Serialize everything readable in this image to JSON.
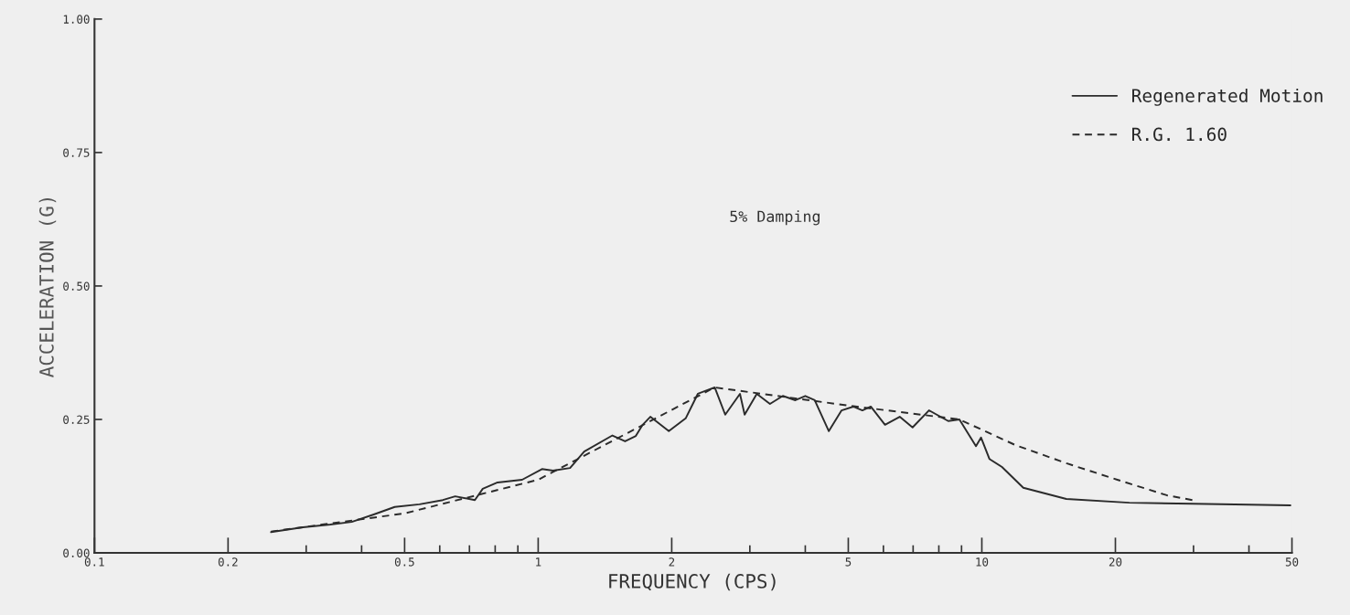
{
  "chart_data": {
    "type": "line",
    "xlabel": "FREQUENCY (CPS)",
    "ylabel": "ACCELERATION (G)",
    "annotations": [
      "5% Damping"
    ],
    "log": "x",
    "grid": false,
    "legend": "top right",
    "marker": "none",
    "xlim": [
      0.1,
      50
    ],
    "ylim": [
      0,
      1.0
    ],
    "xticks": [
      0.1,
      0.2,
      {
        "value": 0.3,
        "label": null
      },
      {
        "value": 0.4,
        "label": null
      },
      0.5,
      {
        "value": 0.6,
        "label": null
      },
      {
        "value": 0.7,
        "label": null
      },
      {
        "value": 0.8,
        "label": null
      },
      {
        "value": 0.9,
        "label": null
      },
      1,
      2,
      {
        "value": 3,
        "label": null
      },
      {
        "value": 4,
        "label": null
      },
      5,
      {
        "value": 6,
        "label": null
      },
      {
        "value": 7,
        "label": null
      },
      {
        "value": 8,
        "label": null
      },
      {
        "value": 9,
        "label": null
      },
      10,
      20,
      {
        "value": 30,
        "label": null
      },
      {
        "value": 40,
        "label": null
      },
      50
    ],
    "yticks": [
      {
        "value": 0,
        "label": "0.00"
      },
      {
        "value": 0.25,
        "label": "0.25"
      },
      {
        "value": 0.5,
        "label": "0.50"
      },
      {
        "value": 0.75,
        "label": "0.75"
      },
      {
        "value": 1.0,
        "label": "1.00"
      }
    ],
    "series": [
      {
        "name": "Regenerated Motion",
        "color": "#2b2b2b",
        "line_style": "solid",
        "x": [
          0.25,
          0.295,
          0.34,
          0.38,
          0.426,
          0.475,
          0.54,
          0.61,
          0.65,
          0.72,
          0.75,
          0.81,
          0.92,
          1.02,
          1.08,
          1.18,
          1.27,
          1.47,
          1.57,
          1.66,
          1.72,
          1.79,
          1.97,
          2.15,
          2.29,
          2.5,
          2.64,
          2.85,
          2.92,
          3.11,
          3.33,
          3.56,
          3.8,
          4.0,
          4.2,
          4.52,
          4.83,
          5.13,
          5.38,
          5.62,
          6.05,
          6.53,
          6.98,
          7.6,
          8.4,
          8.9,
          9.7,
          9.96,
          10.4,
          11.1,
          12.4,
          15.5,
          21.5,
          29.9,
          49.6
        ],
        "values": [
          0.039,
          0.048,
          0.053,
          0.058,
          0.072,
          0.086,
          0.091,
          0.099,
          0.106,
          0.099,
          0.12,
          0.132,
          0.137,
          0.157,
          0.154,
          0.159,
          0.19,
          0.22,
          0.209,
          0.219,
          0.24,
          0.255,
          0.228,
          0.252,
          0.298,
          0.31,
          0.259,
          0.298,
          0.259,
          0.298,
          0.279,
          0.294,
          0.286,
          0.294,
          0.286,
          0.228,
          0.267,
          0.274,
          0.267,
          0.274,
          0.24,
          0.255,
          0.235,
          0.267,
          0.247,
          0.25,
          0.2,
          0.216,
          0.176,
          0.161,
          0.122,
          0.101,
          0.094,
          0.092,
          0.089
        ]
      },
      {
        "name": "R.G. 1.60",
        "color": "#2b2b2b",
        "line_style": "dashed",
        "x": [
          0.25,
          0.5,
          1.0,
          2.5,
          5.0,
          8.9,
          11.9,
          15.5,
          20.2,
          26.1,
          30.2
        ],
        "values": [
          0.04,
          0.074,
          0.137,
          0.31,
          0.276,
          0.25,
          0.202,
          0.168,
          0.137,
          0.108,
          0.098
        ]
      }
    ]
  }
}
